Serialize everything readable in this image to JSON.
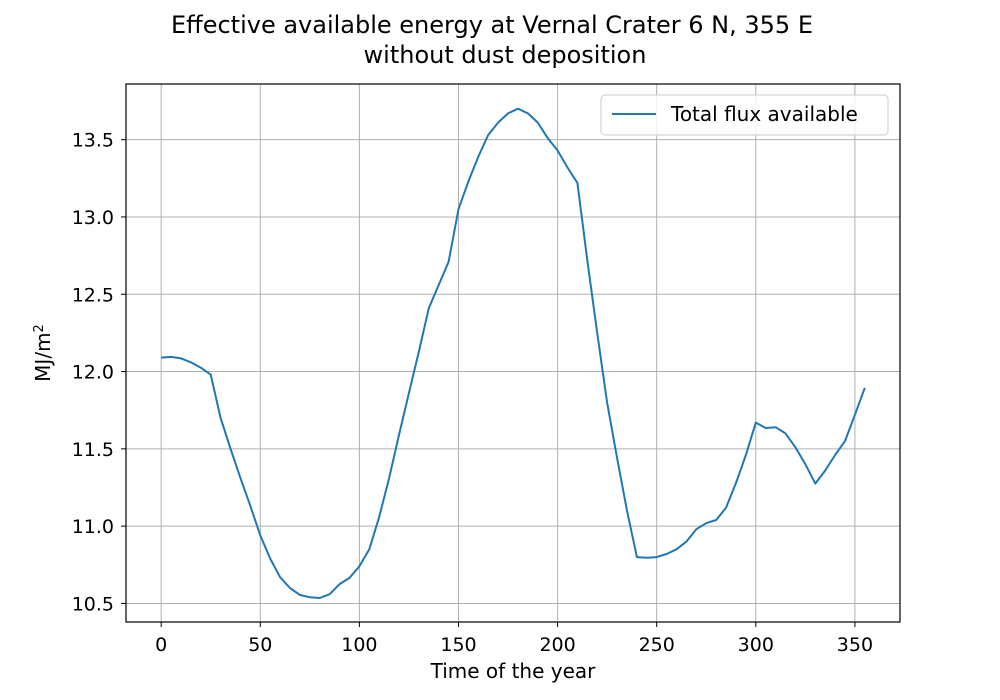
{
  "chart_data": {
    "type": "line",
    "title_lines": [
      "Effective available energy at Vernal Crater 6 N, 355 E",
      "without dust deposition"
    ],
    "xlabel": "Time of the year",
    "ylabel_base": "MJ/m",
    "ylabel_sup": "2",
    "xlim": [
      -17.75,
      372.75
    ],
    "ylim": [
      10.38,
      13.86
    ],
    "xticks": [
      0,
      50,
      100,
      150,
      200,
      250,
      300,
      350
    ],
    "xtick_labels": [
      "0",
      "50",
      "100",
      "150",
      "200",
      "250",
      "300",
      "350"
    ],
    "yticks": [
      10.5,
      11.0,
      11.5,
      12.0,
      12.5,
      13.0,
      13.5
    ],
    "ytick_labels": [
      "10.5",
      "11.0",
      "11.5",
      "12.0",
      "12.5",
      "13.0",
      "13.5"
    ],
    "grid": true,
    "legend_position": "top-right",
    "series": [
      {
        "name": "Total flux available",
        "color": "#1f77b4",
        "x": [
          0,
          5,
          10,
          15,
          20,
          25,
          30,
          35,
          40,
          45,
          50,
          55,
          60,
          65,
          70,
          75,
          80,
          85,
          90,
          95,
          100,
          105,
          110,
          115,
          120,
          125,
          130,
          135,
          140,
          145,
          150,
          155,
          160,
          165,
          170,
          175,
          180,
          185,
          190,
          195,
          200,
          205,
          210,
          215,
          220,
          225,
          230,
          235,
          240,
          245,
          250,
          255,
          260,
          265,
          270,
          275,
          280,
          285,
          290,
          295,
          300,
          305,
          310,
          315,
          320,
          325,
          330,
          335,
          340,
          345,
          350,
          355
        ],
        "y": [
          12.09,
          12.095,
          12.085,
          12.06,
          12.025,
          11.98,
          11.7,
          11.5,
          11.31,
          11.13,
          10.94,
          10.79,
          10.67,
          10.6,
          10.555,
          10.54,
          10.535,
          10.56,
          10.625,
          10.665,
          10.74,
          10.85,
          11.06,
          11.31,
          11.59,
          11.86,
          12.13,
          12.41,
          12.56,
          12.71,
          13.05,
          13.23,
          13.39,
          13.53,
          13.61,
          13.67,
          13.7,
          13.67,
          13.61,
          13.51,
          13.43,
          13.32,
          13.22,
          12.72,
          12.25,
          11.8,
          11.44,
          11.1,
          10.8,
          10.795,
          10.8,
          10.82,
          10.85,
          10.9,
          10.98,
          11.02,
          11.04,
          11.12,
          11.28,
          11.46,
          11.67,
          11.635,
          11.64,
          11.6,
          11.51,
          11.4,
          11.275,
          11.36,
          11.46,
          11.55,
          11.72,
          11.895
        ]
      }
    ]
  }
}
